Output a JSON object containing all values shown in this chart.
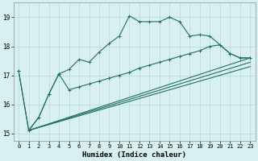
{
  "xlabel": "Humidex (Indice chaleur)",
  "background_color": "#d8f0f0",
  "grid_color": "#b8d8d8",
  "line_color": "#207060",
  "xlim": [
    -0.5,
    23.5
  ],
  "ylim": [
    14.75,
    19.5
  ],
  "yticks": [
    15,
    16,
    17,
    18,
    19
  ],
  "xticks": [
    0,
    1,
    2,
    3,
    4,
    5,
    6,
    7,
    8,
    9,
    10,
    11,
    12,
    13,
    14,
    15,
    16,
    17,
    18,
    19,
    20,
    21,
    22,
    23
  ],
  "line1_x": [
    0,
    1,
    2,
    3,
    4,
    5,
    6,
    7,
    8,
    9,
    10,
    11,
    12,
    13,
    14,
    15,
    16,
    17,
    18,
    19,
    20,
    21,
    22,
    23
  ],
  "line1_y": [
    17.15,
    15.1,
    15.55,
    16.35,
    17.05,
    17.2,
    17.55,
    17.45,
    17.8,
    18.1,
    18.35,
    19.05,
    18.85,
    18.85,
    18.85,
    19.0,
    18.85,
    18.35,
    18.4,
    18.35,
    18.05,
    17.75,
    17.6,
    17.6
  ],
  "line2_x": [
    0,
    1,
    2,
    3,
    4,
    5,
    6,
    7,
    8,
    9,
    10,
    11,
    12,
    13,
    14,
    15,
    16,
    17,
    18,
    19,
    20,
    21,
    22,
    23
  ],
  "line2_y": [
    17.15,
    15.1,
    15.55,
    16.35,
    17.05,
    16.5,
    16.6,
    16.7,
    16.8,
    16.9,
    17.0,
    17.1,
    17.25,
    17.35,
    17.45,
    17.55,
    17.65,
    17.75,
    17.85,
    18.0,
    18.05,
    17.75,
    17.6,
    17.6
  ],
  "line3_x": [
    1,
    23
  ],
  "line3_y": [
    15.1,
    17.6
  ],
  "line4_x": [
    1,
    23
  ],
  "line4_y": [
    15.1,
    17.45
  ],
  "line5_x": [
    1,
    23
  ],
  "line5_y": [
    15.1,
    17.3
  ]
}
